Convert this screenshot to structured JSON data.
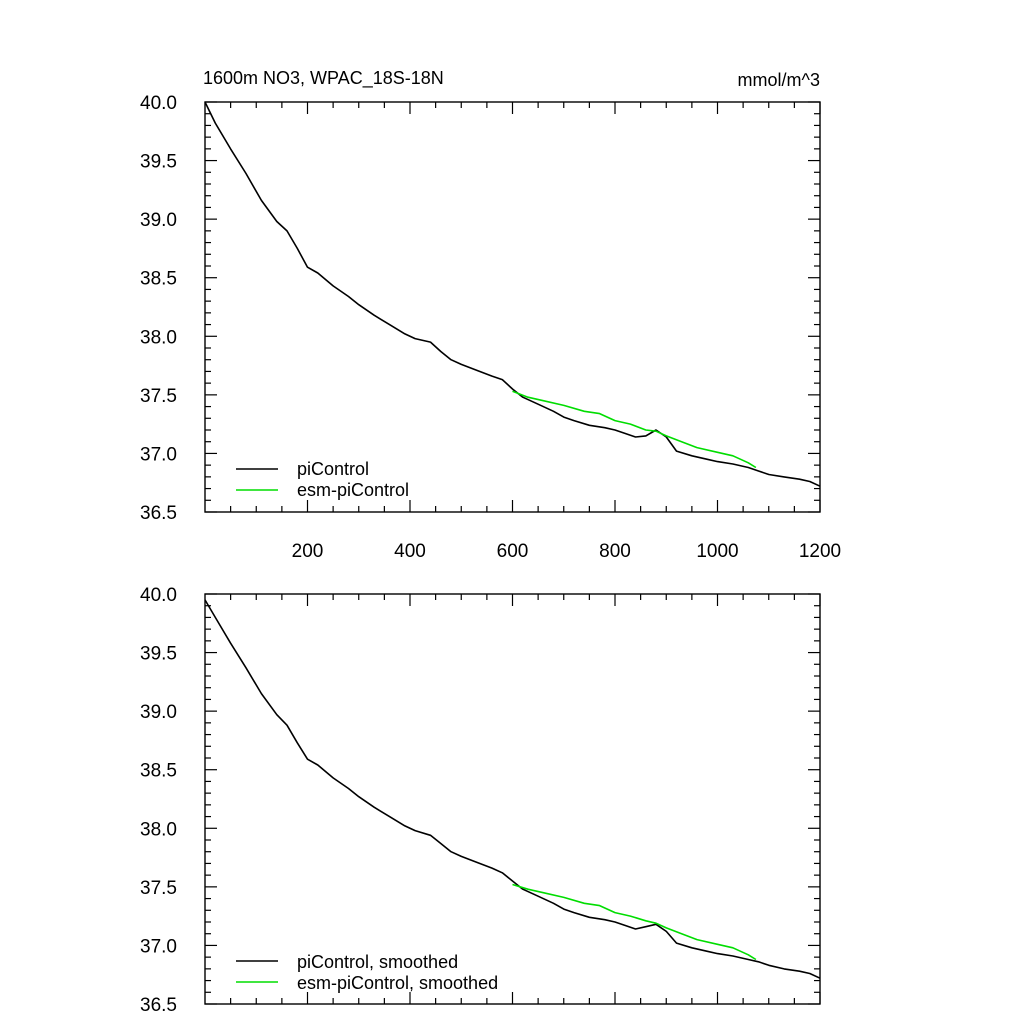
{
  "chart_data": [
    {
      "type": "line",
      "title": "1600m NO3, WPAC_18S-18N",
      "units": "mmol/m^3",
      "xlim": [
        0,
        1200
      ],
      "ylim": [
        36.5,
        40.0
      ],
      "xticks": [
        200,
        400,
        600,
        800,
        1000,
        1200
      ],
      "xtick_labels": [
        "200",
        "400",
        "600",
        "800",
        "1000",
        "1200"
      ],
      "yticks": [
        36.5,
        37.0,
        37.5,
        38.0,
        38.5,
        39.0,
        39.5,
        40.0
      ],
      "ytick_labels": [
        "36.5",
        "37.0",
        "37.5",
        "38.0",
        "38.5",
        "39.0",
        "39.5",
        "40.0"
      ],
      "legend_position": "bottom-left",
      "series": [
        {
          "name": "piControl",
          "color": "#000000",
          "x": [
            0,
            20,
            50,
            80,
            110,
            140,
            160,
            180,
            200,
            220,
            250,
            280,
            300,
            330,
            360,
            390,
            410,
            440,
            460,
            480,
            500,
            530,
            560,
            580,
            600,
            620,
            650,
            680,
            700,
            720,
            750,
            780,
            800,
            820,
            840,
            860,
            880,
            900,
            920,
            950,
            980,
            1000,
            1030,
            1060,
            1080,
            1100,
            1130,
            1160,
            1180,
            1200
          ],
          "y": [
            40.0,
            39.82,
            39.6,
            39.39,
            39.16,
            38.98,
            38.9,
            38.75,
            38.59,
            38.54,
            38.43,
            38.34,
            38.27,
            38.18,
            38.1,
            38.02,
            37.98,
            37.95,
            37.87,
            37.8,
            37.76,
            37.71,
            37.66,
            37.63,
            37.55,
            37.48,
            37.42,
            37.36,
            37.31,
            37.28,
            37.24,
            37.22,
            37.2,
            37.17,
            37.14,
            37.15,
            37.2,
            37.14,
            37.02,
            36.98,
            36.95,
            36.93,
            36.91,
            36.88,
            36.85,
            36.82,
            36.8,
            36.78,
            36.76,
            36.72
          ]
        },
        {
          "name": "esm-piControl",
          "color": "#00dd00",
          "x": [
            600,
            630,
            660,
            700,
            740,
            770,
            800,
            830,
            860,
            880,
            900,
            930,
            960,
            1000,
            1030,
            1060,
            1075
          ],
          "y": [
            37.53,
            37.48,
            37.45,
            37.41,
            37.36,
            37.34,
            37.28,
            37.25,
            37.2,
            37.19,
            37.15,
            37.1,
            37.05,
            37.01,
            36.98,
            36.92,
            36.88
          ]
        }
      ]
    },
    {
      "type": "line",
      "title": "",
      "xlim": [
        0,
        1200
      ],
      "ylim": [
        36.5,
        40.0
      ],
      "xticks": [
        200,
        400,
        600,
        800,
        1000,
        1200
      ],
      "yticks": [
        36.5,
        37.0,
        37.5,
        38.0,
        38.5,
        39.0,
        39.5,
        40.0
      ],
      "ytick_labels": [
        "36.5",
        "37.0",
        "37.5",
        "38.0",
        "38.5",
        "39.0",
        "39.5",
        "40.0"
      ],
      "legend_position": "bottom-left",
      "series": [
        {
          "name": "piControl, smoothed",
          "color": "#000000",
          "x": [
            0,
            20,
            50,
            80,
            110,
            140,
            160,
            180,
            200,
            220,
            250,
            280,
            300,
            330,
            360,
            390,
            410,
            440,
            460,
            480,
            500,
            530,
            560,
            580,
            600,
            620,
            650,
            680,
            700,
            720,
            750,
            780,
            800,
            820,
            840,
            860,
            880,
            900,
            920,
            950,
            980,
            1000,
            1030,
            1060,
            1080,
            1100,
            1130,
            1160,
            1180,
            1200
          ],
          "y": [
            39.95,
            39.8,
            39.58,
            39.37,
            39.15,
            38.97,
            38.88,
            38.73,
            38.59,
            38.54,
            38.43,
            38.34,
            38.27,
            38.18,
            38.1,
            38.02,
            37.98,
            37.94,
            37.87,
            37.8,
            37.76,
            37.71,
            37.66,
            37.62,
            37.55,
            37.48,
            37.42,
            37.36,
            37.31,
            37.28,
            37.24,
            37.22,
            37.2,
            37.17,
            37.14,
            37.16,
            37.18,
            37.12,
            37.02,
            36.98,
            36.95,
            36.93,
            36.91,
            36.88,
            36.86,
            36.83,
            36.8,
            36.78,
            36.76,
            36.72
          ]
        },
        {
          "name": "esm-piControl, smoothed",
          "color": "#00dd00",
          "x": [
            600,
            630,
            660,
            700,
            740,
            770,
            800,
            830,
            860,
            880,
            900,
            930,
            960,
            1000,
            1030,
            1060,
            1075
          ],
          "y": [
            37.52,
            37.48,
            37.45,
            37.41,
            37.36,
            37.34,
            37.28,
            37.25,
            37.21,
            37.19,
            37.15,
            37.1,
            37.05,
            37.01,
            36.98,
            36.92,
            36.88
          ]
        }
      ]
    }
  ]
}
